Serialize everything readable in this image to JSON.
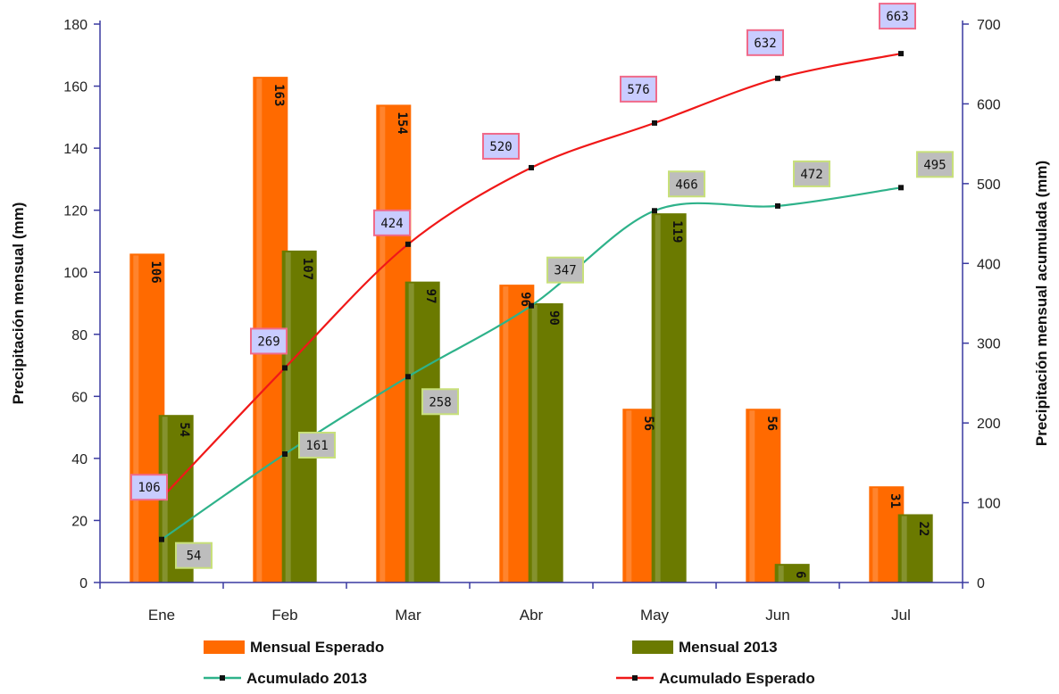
{
  "chart_data": {
    "type": "bar",
    "categories": [
      "Ene",
      "Feb",
      "Mar",
      "Abr",
      "May",
      "Jun",
      "Jul"
    ],
    "series": [
      {
        "name": "Mensual Esperado",
        "type": "bar",
        "axis": "left",
        "color": "#ff6a00",
        "values": [
          106,
          163,
          154,
          96,
          56,
          56,
          31
        ]
      },
      {
        "name": "Mensual 2013",
        "type": "bar",
        "axis": "left",
        "color": "#6b7a00",
        "values": [
          54,
          107,
          97,
          90,
          119,
          6,
          22
        ]
      },
      {
        "name": "Acumulado 2013",
        "type": "line",
        "axis": "right",
        "color": "#2eb28a",
        "label_bg": "#bdbdbd",
        "label_border": "#c8e07a",
        "values": [
          54,
          161,
          258,
          347,
          466,
          472,
          495
        ]
      },
      {
        "name": "Acumulado Esperado",
        "type": "line",
        "axis": "right",
        "color": "#f01818",
        "label_bg": "#c9ccff",
        "label_border": "#f06a8a",
        "values": [
          106,
          269,
          424,
          520,
          576,
          632,
          663
        ]
      }
    ],
    "ylabel": "Precipitación mensual (mm)",
    "y2label": "Precipitación mensual acumulada (mm)",
    "ylim": [
      0,
      180
    ],
    "yticks": [
      0,
      20,
      40,
      60,
      80,
      100,
      120,
      140,
      160,
      180
    ],
    "y2lim": [
      0,
      700
    ],
    "y2ticks": [
      0,
      100,
      200,
      300,
      400,
      500,
      600,
      700
    ],
    "axis_color": "#3a3aa0",
    "grid": false,
    "legend_position": "bottom"
  }
}
